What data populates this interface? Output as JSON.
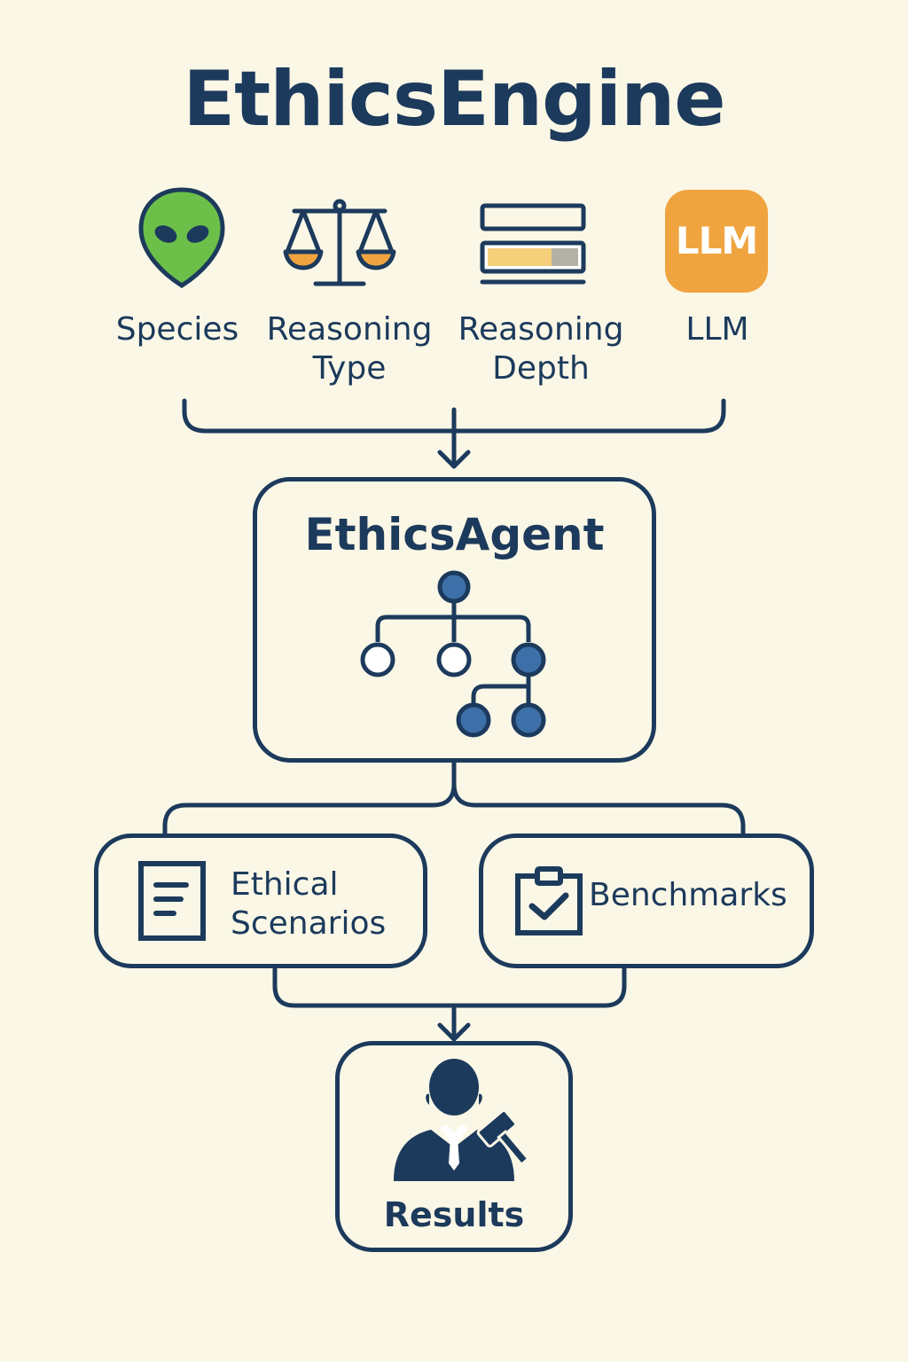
{
  "title": "EthicsEngine",
  "inputs": [
    {
      "label_line1": "Species",
      "label_line2": "",
      "icon": "alien-icon"
    },
    {
      "label_line1": "Reasoning",
      "label_line2": "Type",
      "icon": "scales-icon"
    },
    {
      "label_line1": "Reasoning",
      "label_line2": "Depth",
      "icon": "progress-bar-icon"
    },
    {
      "label_line1": "LLM",
      "label_line2": "",
      "icon": "llm-icon",
      "icon_text": "LLM"
    }
  ],
  "agent": {
    "title": "EthicsAgent",
    "icon": "tree-icon"
  },
  "outputs": [
    {
      "label_line1": "Ethical",
      "label_line2": "Scenarios",
      "icon": "document-icon"
    },
    {
      "label_line1": "Benchmarks",
      "label_line2": "",
      "icon": "clipboard-check-icon"
    }
  ],
  "results": {
    "label": "Results",
    "icon": "judge-icon"
  },
  "colors": {
    "background": "#fbf7e6",
    "ink": "#1c3a5c",
    "alien_green": "#6cc04a",
    "llm_orange": "#f0a440",
    "node_blue": "#3d6fa8",
    "scale_orange": "#f0a440"
  }
}
